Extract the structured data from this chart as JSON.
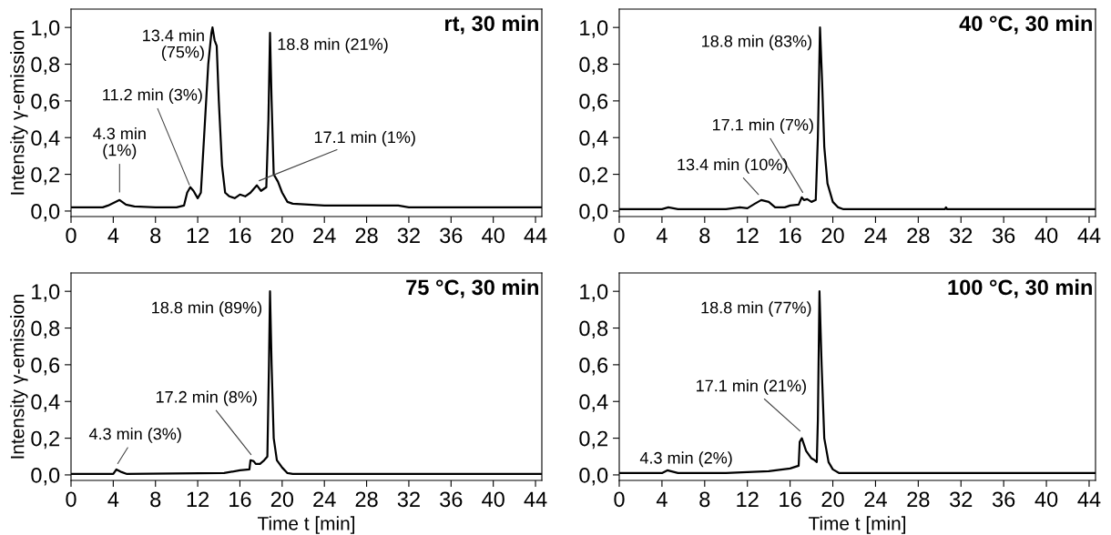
{
  "chart_data": [
    {
      "type": "line",
      "title": "rt, 30 min",
      "ylabel": "Intensity γ-emission",
      "xlim": [
        0,
        44.6
      ],
      "ylim": [
        -0.03,
        1.1
      ],
      "xticks": [
        0,
        4,
        8,
        12,
        16,
        20,
        24,
        28,
        32,
        36,
        40,
        44
      ],
      "yticks": [
        {
          "value": 0,
          "label": "0,0"
        },
        {
          "value": 0.2,
          "label": "0,2"
        },
        {
          "value": 0.4,
          "label": "0,4"
        },
        {
          "value": 0.6,
          "label": "0,6"
        },
        {
          "value": 0.8,
          "label": "0,8"
        },
        {
          "value": 1.0,
          "label": "1,0"
        }
      ],
      "series": [
        {
          "color": "#000000",
          "x": [
            0,
            3,
            3.5,
            4.6,
            5.2,
            6,
            8,
            10,
            10.7,
            11.0,
            11.3,
            11.6,
            12.0,
            12.3,
            12.6,
            13.0,
            13.3,
            13.4,
            13.6,
            13.8,
            14.0,
            14.3,
            14.6,
            15.0,
            15.5,
            16,
            16.5,
            17.0,
            17.6,
            18.0,
            18.5,
            18.7,
            18.85,
            19.0,
            19.2,
            19.6,
            20.0,
            20.5,
            21,
            24,
            28,
            31,
            32,
            36,
            40,
            44.6
          ],
          "values": [
            0.02,
            0.02,
            0.03,
            0.06,
            0.035,
            0.025,
            0.02,
            0.02,
            0.03,
            0.1,
            0.13,
            0.11,
            0.07,
            0.1,
            0.4,
            0.8,
            0.97,
            1.0,
            0.93,
            0.9,
            0.6,
            0.25,
            0.1,
            0.08,
            0.07,
            0.09,
            0.08,
            0.1,
            0.14,
            0.11,
            0.13,
            0.5,
            0.97,
            0.6,
            0.2,
            0.16,
            0.1,
            0.05,
            0.04,
            0.03,
            0.03,
            0.03,
            0.02,
            0.02,
            0.02,
            0.02
          ]
        }
      ],
      "marker": "none",
      "line_style": "solid",
      "grid": false,
      "annotations": [
        {
          "text": "4.3 min\n(1%)",
          "x": 4.6,
          "y": 0.09
        },
        {
          "text": "11.2 min (3%)",
          "x": 11.3,
          "y": 0.13
        },
        {
          "text": "13.4 min\n(75%)",
          "x": 13.4,
          "y": 1.0
        },
        {
          "text": "18.8 min (21%)",
          "x": 18.8,
          "y": 0.97
        },
        {
          "text": "17.1 min (1%)",
          "x": 17.6,
          "y": 0.16
        }
      ]
    },
    {
      "type": "line",
      "title": "40 °C, 30 min",
      "xlim": [
        0,
        44.6
      ],
      "ylim": [
        -0.03,
        1.1
      ],
      "xticks": [
        0,
        4,
        8,
        12,
        16,
        20,
        24,
        28,
        32,
        36,
        40,
        44
      ],
      "yticks": [
        {
          "value": 0,
          "label": "0,0"
        },
        {
          "value": 0.2,
          "label": "0,2"
        },
        {
          "value": 0.4,
          "label": "0,4"
        },
        {
          "value": 0.6,
          "label": "0,6"
        },
        {
          "value": 0.8,
          "label": "0,8"
        },
        {
          "value": 1.0,
          "label": "1,0"
        }
      ],
      "series": [
        {
          "color": "#000000",
          "x": [
            0,
            4,
            4.6,
            5.5,
            10,
            11.3,
            12,
            12.7,
            13.3,
            14,
            14.6,
            15.5,
            16,
            16.8,
            17.1,
            17.3,
            17.6,
            18.0,
            18.4,
            18.6,
            18.8,
            19.0,
            19.2,
            19.5,
            20,
            20.5,
            21,
            30.5,
            30.6,
            30.7,
            44.6
          ],
          "values": [
            0.01,
            0.01,
            0.02,
            0.01,
            0.01,
            0.02,
            0.015,
            0.04,
            0.06,
            0.05,
            0.02,
            0.02,
            0.03,
            0.035,
            0.075,
            0.06,
            0.065,
            0.05,
            0.06,
            0.4,
            1.0,
            0.7,
            0.35,
            0.15,
            0.05,
            0.02,
            0.01,
            0.01,
            0.02,
            0.01,
            0.01
          ]
        }
      ],
      "marker": "none",
      "line_style": "solid",
      "grid": false,
      "annotations": [
        {
          "text": "18.8 min (83%)",
          "x": 18.8,
          "y": 1.0
        },
        {
          "text": "17.1 min (7%)",
          "x": 17.3,
          "y": 0.09
        },
        {
          "text": "13.4 min (10%)",
          "x": 13.2,
          "y": 0.08
        }
      ]
    },
    {
      "type": "line",
      "title": "75 °C, 30 min",
      "xlabel": "Time t [min]",
      "ylabel": "Intensity γ-emission",
      "xlim": [
        0,
        44.6
      ],
      "ylim": [
        -0.03,
        1.1
      ],
      "xticks": [
        0,
        4,
        8,
        12,
        16,
        20,
        24,
        28,
        32,
        36,
        40,
        44
      ],
      "yticks": [
        {
          "value": 0,
          "label": "0,0"
        },
        {
          "value": 0.2,
          "label": "0,2"
        },
        {
          "value": 0.4,
          "label": "0,4"
        },
        {
          "value": 0.6,
          "label": "0,6"
        },
        {
          "value": 0.8,
          "label": "0,8"
        },
        {
          "value": 1.0,
          "label": "1,0"
        }
      ],
      "series": [
        {
          "color": "#000000",
          "x": [
            0,
            4,
            4.3,
            4.8,
            5.3,
            14.5,
            15,
            16,
            16.9,
            17.0,
            17.3,
            17.5,
            17.9,
            18.3,
            18.6,
            18.75,
            18.85,
            19.0,
            19.2,
            19.5,
            20,
            20.5,
            21,
            44.6
          ],
          "values": [
            0.005,
            0.005,
            0.03,
            0.015,
            0.005,
            0.01,
            0.015,
            0.025,
            0.03,
            0.08,
            0.075,
            0.06,
            0.06,
            0.08,
            0.1,
            0.6,
            1.0,
            0.6,
            0.2,
            0.08,
            0.04,
            0.01,
            0.005,
            0.005
          ]
        }
      ],
      "marker": "none",
      "line_style": "solid",
      "grid": false,
      "annotations": [
        {
          "text": "18.8 min (89%)",
          "x": 18.85,
          "y": 1.0
        },
        {
          "text": "17.2 min (8%)",
          "x": 17.2,
          "y": 0.1
        },
        {
          "text": "4.3 min (3%)",
          "x": 4.3,
          "y": 0.05
        }
      ]
    },
    {
      "type": "line",
      "title": "100 °C, 30 min",
      "xlabel": "Time t [min]",
      "xlim": [
        0,
        44.6
      ],
      "ylim": [
        -0.03,
        1.1
      ],
      "xticks": [
        0,
        4,
        8,
        12,
        16,
        20,
        24,
        28,
        32,
        36,
        40,
        44
      ],
      "yticks": [
        {
          "value": 0,
          "label": "0,0"
        },
        {
          "value": 0.2,
          "label": "0,2"
        },
        {
          "value": 0.4,
          "label": "0,4"
        },
        {
          "value": 0.6,
          "label": "0,6"
        },
        {
          "value": 0.8,
          "label": "0,8"
        },
        {
          "value": 1.0,
          "label": "1,0"
        }
      ],
      "series": [
        {
          "color": "#000000",
          "x": [
            0,
            4,
            4.5,
            5.5,
            10,
            14,
            16,
            16.8,
            16.9,
            17.1,
            17.5,
            18,
            18.3,
            18.5,
            18.6,
            18.75,
            18.95,
            19.2,
            19.6,
            20,
            20.6,
            44.6
          ],
          "values": [
            0.01,
            0.01,
            0.025,
            0.01,
            0.01,
            0.02,
            0.035,
            0.05,
            0.18,
            0.2,
            0.13,
            0.09,
            0.08,
            0.07,
            0.3,
            1.0,
            0.6,
            0.2,
            0.07,
            0.03,
            0.01,
            0.01
          ]
        }
      ],
      "marker": "none",
      "line_style": "solid",
      "grid": false,
      "annotations": [
        {
          "text": "18.8 min (77%)",
          "x": 18.75,
          "y": 1.0
        },
        {
          "text": "17.1 min (21%)",
          "x": 17.1,
          "y": 0.23
        },
        {
          "text": "4.3 min (2%)",
          "x": 4.5,
          "y": 0.03
        }
      ]
    }
  ]
}
